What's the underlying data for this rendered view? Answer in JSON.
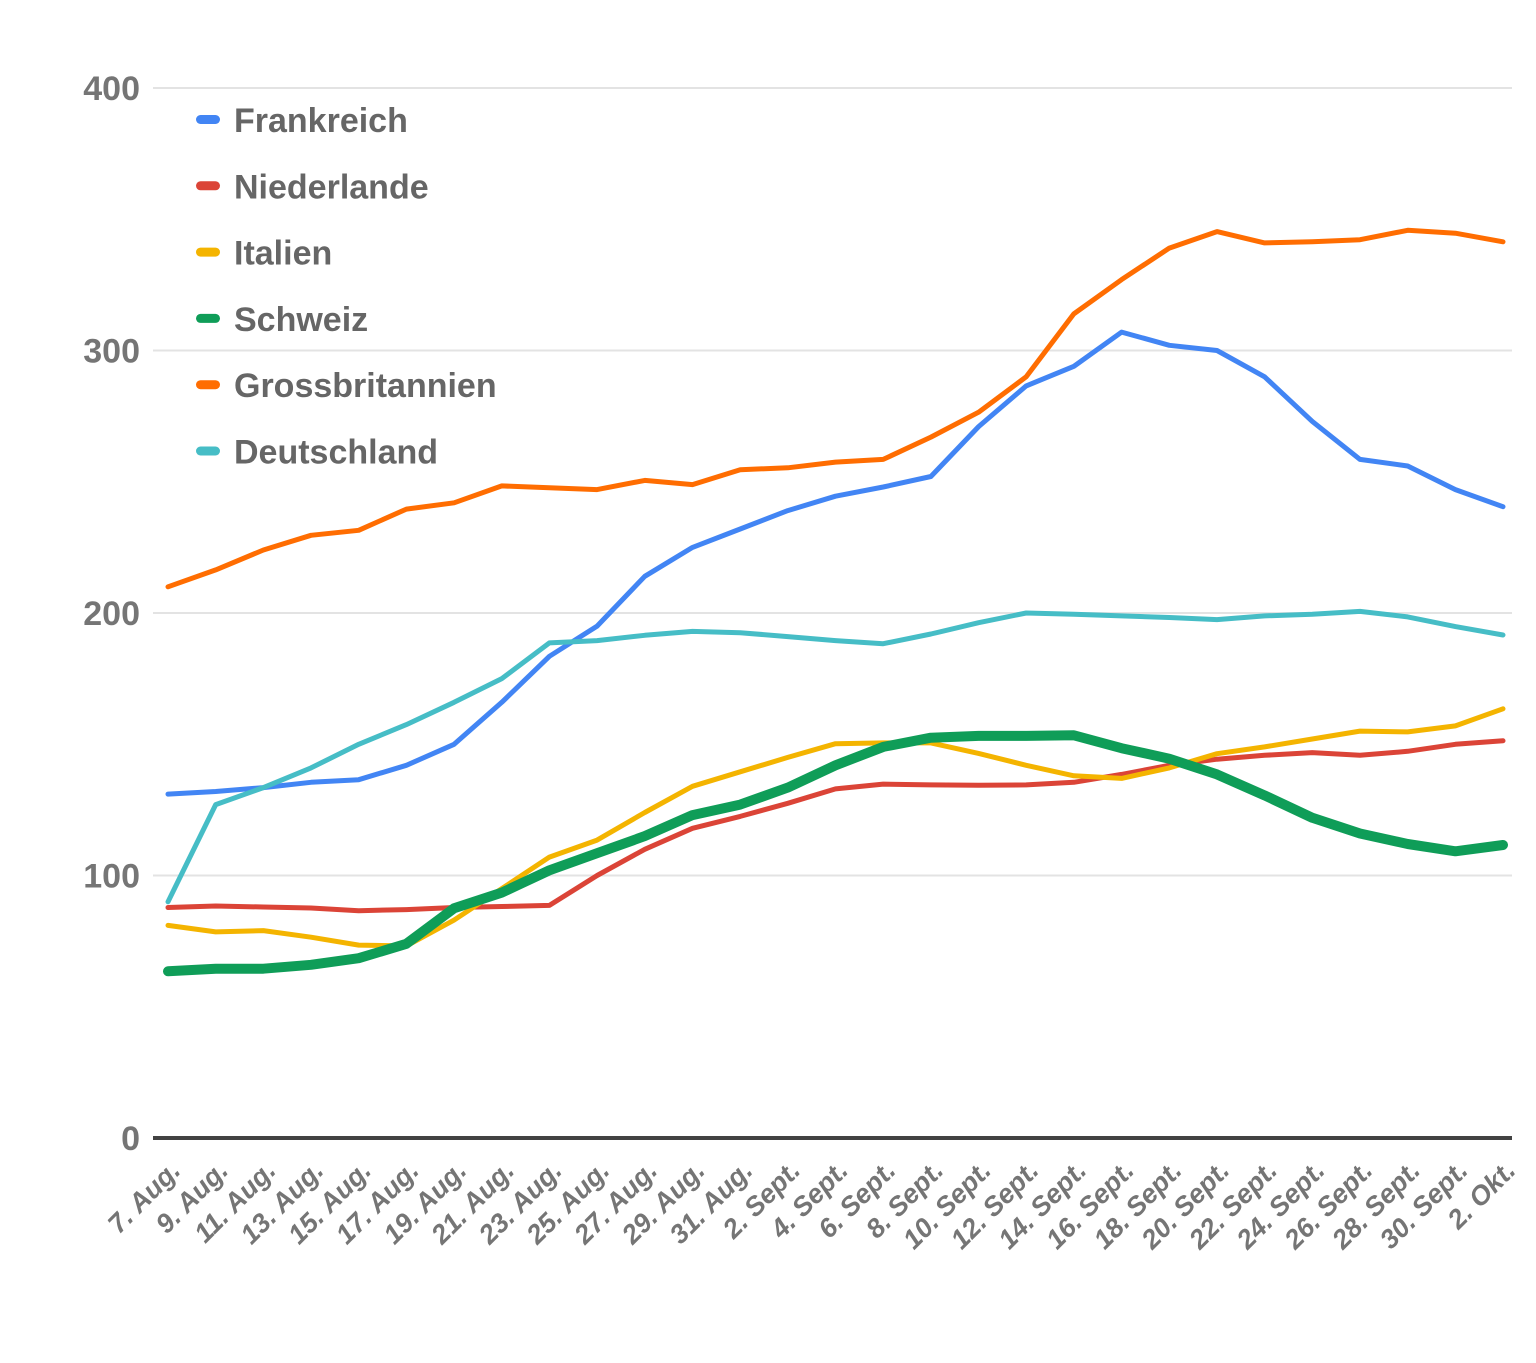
{
  "chart_data": {
    "type": "line",
    "title": "",
    "xlabel": "",
    "ylabel": "",
    "ylim": [
      0,
      400
    ],
    "y_ticks": [
      0,
      100,
      200,
      300,
      400
    ],
    "grid": true,
    "legend_position": "top-left-inside",
    "x_tick_rotation": -45,
    "categories": [
      "7. Aug.",
      "9. Aug.",
      "11. Aug.",
      "13. Aug.",
      "15. Aug.",
      "17. Aug.",
      "19. Aug.",
      "21. Aug.",
      "23. Aug.",
      "25. Aug.",
      "27. Aug.",
      "29. Aug.",
      "31. Aug.",
      "2. Sept.",
      "4. Sept.",
      "6. Sept.",
      "8. Sept.",
      "10. Sept.",
      "12. Sept.",
      "14. Sept.",
      "16. Sept.",
      "18. Sept.",
      "20. Sept.",
      "22. Sept.",
      "24. Sept.",
      "26. Sept.",
      "28. Sept.",
      "30. Sept.",
      "2. Okt."
    ],
    "series": [
      {
        "name": "Frankreich",
        "color": "#4285f4",
        "line_width": 5,
        "values": [
          131,
          132,
          133.5,
          135.5,
          136.5,
          142,
          150,
          166,
          183.5,
          195,
          214,
          225,
          232,
          239,
          244.5,
          248,
          252,
          271,
          286.5,
          294,
          307,
          302,
          300,
          290,
          273,
          258.5,
          256,
          247,
          240.5
        ]
      },
      {
        "name": "Niederlande",
        "color": "#db4437",
        "line_width": 5,
        "values": [
          87.8,
          88.4,
          88,
          87.6,
          86.6,
          87,
          87.8,
          88.2,
          88.6,
          100,
          110,
          118,
          122.5,
          127.5,
          133,
          134.8,
          134.5,
          134.4,
          134.5,
          135.5,
          138.5,
          142,
          144.3,
          145.8,
          146.8,
          145.8,
          147.3,
          150,
          151.3
        ]
      },
      {
        "name": "Italien",
        "color": "#f4b400",
        "line_width": 5,
        "values": [
          81,
          78.5,
          79,
          76.5,
          73.5,
          73.2,
          83,
          95,
          107,
          113.5,
          124,
          134,
          139.5,
          145,
          150.2,
          150.5,
          150.5,
          146.5,
          142,
          138,
          137,
          141,
          146.4,
          149,
          152,
          155,
          154.7,
          157,
          163.5
        ]
      },
      {
        "name": "Schweiz",
        "color": "#0f9d58",
        "line_width": 10,
        "values": [
          63.5,
          64.5,
          64.5,
          66,
          68.5,
          74,
          87.5,
          93.5,
          102,
          108.5,
          115,
          123,
          127,
          133.5,
          142,
          149,
          152.5,
          153.2,
          153.2,
          153.4,
          148.5,
          144.5,
          138.5,
          130.5,
          122,
          116,
          112,
          109.2,
          111.6
        ]
      },
      {
        "name": "Grossbritannien",
        "color": "#ff6d01",
        "line_width": 5,
        "values": [
          210,
          216.4,
          224,
          229.6,
          231.5,
          239.6,
          242,
          248.4,
          247.7,
          247,
          250.5,
          248.9,
          254.6,
          255.3,
          257.5,
          258.5,
          267,
          276.5,
          290,
          314,
          327,
          339,
          345.3,
          341,
          341.4,
          342.2,
          345.8,
          344.7,
          341.4
        ]
      },
      {
        "name": "Deutschland",
        "color": "#46bdc6",
        "line_width": 5,
        "values": [
          90,
          127,
          133.5,
          141,
          150,
          157.5,
          166,
          175,
          188.6,
          189.5,
          191.5,
          193,
          192.5,
          191,
          189.5,
          188.3,
          192,
          196.3,
          200,
          199.5,
          198.9,
          198.3,
          197.5,
          198.9,
          199.5,
          200.6,
          198.5,
          194.8,
          191.6
        ]
      }
    ]
  },
  "layout_note": "values sampled at each labeled date"
}
